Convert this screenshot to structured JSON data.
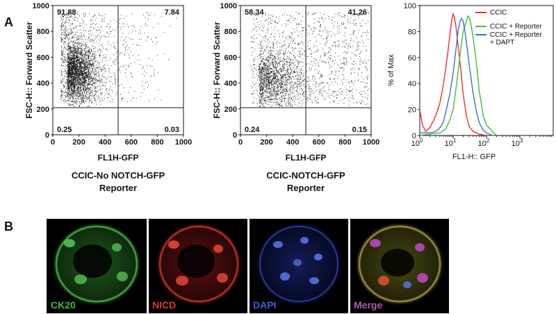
{
  "panel_labels": {
    "a": "A",
    "b": "B"
  },
  "flow_axes": {
    "ylabel": "FSC-H:: Forward Scatter",
    "xlabel": "FL1H-GFP",
    "ticks": [
      "0",
      "200",
      "400",
      "600",
      "800",
      "1000"
    ],
    "xlim": [
      0,
      1000
    ],
    "ylim": [
      0,
      1000
    ],
    "gate_x": 500,
    "gate_y": 210
  },
  "flow_plots": [
    {
      "caption_line1": "CCIC-No NOTCH-GFP",
      "caption_line2": "Reporter",
      "quadrants": {
        "upper_left": "91.88",
        "upper_right": "7.84",
        "lower_left": "0.25",
        "lower_right": "0.03"
      }
    },
    {
      "caption_line1": "CCIC-NOTCH-GFP",
      "caption_line2": "Reporter",
      "quadrants": {
        "upper_left": "58.34",
        "upper_right": "41.26",
        "lower_left": "0.24",
        "lower_right": "0.15"
      }
    }
  ],
  "chart_data": {
    "type": "line",
    "ylabel": "% of Max",
    "xlabel": "FL1-H:: GFP",
    "ylim": [
      0,
      100
    ],
    "y_ticks": [
      "0",
      "20",
      "40",
      "60",
      "80",
      "100"
    ],
    "x_scale": "log",
    "xlim": [
      1,
      10000
    ],
    "x_ticks": [
      {
        "base": "10",
        "exp": "0"
      },
      {
        "base": "10",
        "exp": "1"
      },
      {
        "base": "10",
        "exp": "2"
      },
      {
        "base": "10",
        "exp": "3"
      }
    ],
    "legend_position": "top-right",
    "series": [
      {
        "name": "CCIC",
        "color": "#e8302a",
        "x": [
          1,
          1.2,
          1.5,
          2,
          3,
          4,
          5,
          6,
          7,
          8,
          9,
          10,
          11,
          12,
          14,
          17,
          20,
          25,
          30,
          40,
          60,
          100
        ],
        "y": [
          20,
          8,
          3,
          6,
          15,
          25,
          38,
          52,
          65,
          78,
          88,
          94,
          90,
          85,
          70,
          50,
          32,
          15,
          7,
          3,
          1,
          0
        ]
      },
      {
        "name": "CCIC + Reporter",
        "color": "#3cbf3c",
        "x": [
          1,
          2,
          4,
          6,
          8,
          10,
          12,
          15,
          18,
          20,
          25,
          28,
          32,
          40,
          50,
          60,
          80,
          100,
          150,
          200
        ],
        "y": [
          0,
          1,
          2,
          5,
          12,
          20,
          35,
          55,
          72,
          80,
          88,
          92,
          90,
          75,
          55,
          35,
          15,
          8,
          3,
          0
        ]
      },
      {
        "name": "CCIC + Reporter\n+ DAPT",
        "color": "#3a6fd1",
        "x": [
          1,
          2,
          3,
          4,
          5,
          6,
          8,
          10,
          12,
          14,
          16,
          18,
          20,
          22,
          25,
          30,
          40,
          50,
          60,
          80,
          100,
          150
        ],
        "y": [
          2,
          2,
          3,
          6,
          10,
          18,
          32,
          48,
          65,
          80,
          88,
          90,
          88,
          82,
          72,
          55,
          32,
          18,
          10,
          4,
          2,
          0
        ]
      }
    ]
  },
  "micrographs": [
    {
      "label": "CK20",
      "color": "#3fbf3f"
    },
    {
      "label": "NICD",
      "color": "#e03a2e"
    },
    {
      "label": "DAPI",
      "color": "#3c5fd8"
    },
    {
      "label": "Merge",
      "color": "#b05ab8"
    }
  ]
}
